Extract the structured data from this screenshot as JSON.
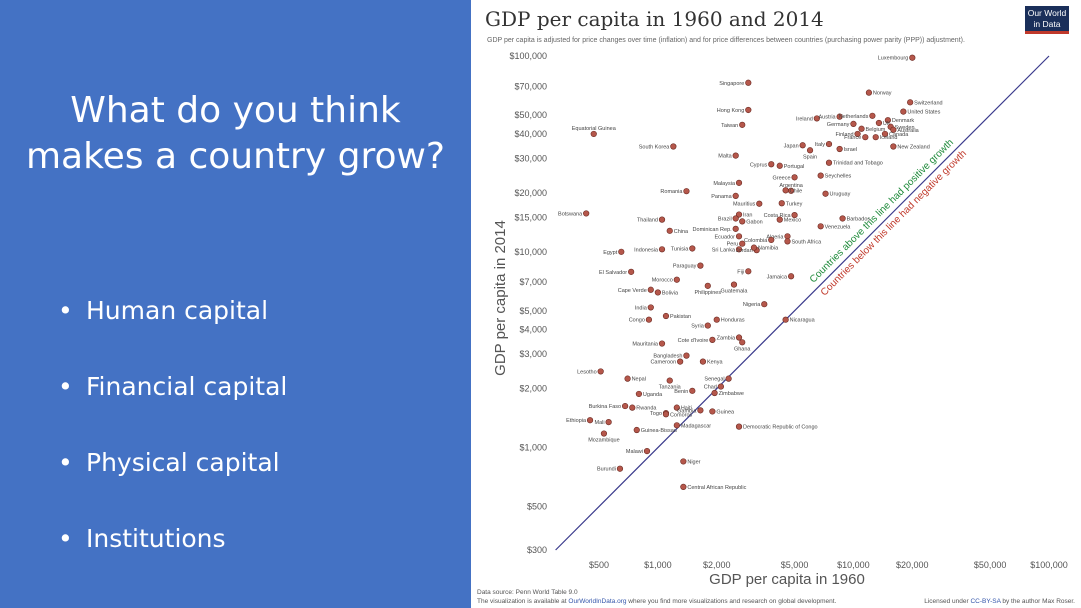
{
  "slide": {
    "title": "What do you think makes a country grow?",
    "bullets": [
      "Human capital",
      "Financial capital",
      "Physical capital",
      "Institutions"
    ]
  },
  "colors": {
    "panel": "#4472c4",
    "marker": "#b5574b",
    "diagonal": "#3a3a8c",
    "positive": "#1e8a3a",
    "negative": "#c0392b",
    "logo_bg": "#1a2f5a",
    "logo_accent": "#c0392b"
  },
  "logo": {
    "line1": "Our World",
    "line2": "in Data"
  },
  "chart_data": {
    "type": "scatter",
    "title": "GDP per capita in 1960 and 2014",
    "subtitle": "GDP per capita is adjusted for price changes over time (inflation) and for price differences between countries (purchasing power parity (PPP)) adjustment).",
    "xlabel": "GDP per capita in 1960",
    "ylabel": "GDP per capita in 2014",
    "xscale": "log",
    "yscale": "log",
    "xlim": [
      300,
      100000
    ],
    "ylim": [
      250,
      110000
    ],
    "x_ticks": [
      {
        "v": 500,
        "l": "$500"
      },
      {
        "v": 1000,
        "l": "$1,000"
      },
      {
        "v": 2000,
        "l": "$2,000"
      },
      {
        "v": 5000,
        "l": "$5,000"
      },
      {
        "v": 10000,
        "l": "$10,000"
      },
      {
        "v": 20000,
        "l": "$20,000"
      },
      {
        "v": 50000,
        "l": "$50,000"
      },
      {
        "v": 100000,
        "l": "$100,000"
      }
    ],
    "y_ticks": [
      {
        "v": 300,
        "l": "$300"
      },
      {
        "v": 500,
        "l": "$500"
      },
      {
        "v": 1000,
        "l": "$1,000"
      },
      {
        "v": 2000,
        "l": "$2,000"
      },
      {
        "v": 3000,
        "l": "$3,000"
      },
      {
        "v": 4000,
        "l": "$4,000"
      },
      {
        "v": 5000,
        "l": "$5,000"
      },
      {
        "v": 7000,
        "l": "$7,000"
      },
      {
        "v": 10000,
        "l": "$10,000"
      },
      {
        "v": 15000,
        "l": "$15,000"
      },
      {
        "v": 20000,
        "l": "$20,000"
      },
      {
        "v": 30000,
        "l": "$30,000"
      },
      {
        "v": 40000,
        "l": "$40,000"
      },
      {
        "v": 50000,
        "l": "$50,000"
      },
      {
        "v": 70000,
        "l": "$70,000"
      },
      {
        "v": 100000,
        "l": "$100,000"
      }
    ],
    "grid": false,
    "annotation_positive": "Countries above this line had positive growth",
    "annotation_negative": "Countries below this line had negative growth",
    "points": [
      {
        "name": "Luxembourg",
        "x": 20000,
        "y": 98000,
        "side": "left"
      },
      {
        "name": "Singapore",
        "x": 2900,
        "y": 73000,
        "side": "left"
      },
      {
        "name": "Norway",
        "x": 12000,
        "y": 65000,
        "side": "right"
      },
      {
        "name": "Switzerland",
        "x": 19500,
        "y": 58000,
        "side": "right"
      },
      {
        "name": "United States",
        "x": 18000,
        "y": 52000,
        "side": "right"
      },
      {
        "name": "Hong Kong",
        "x": 2900,
        "y": 53000,
        "side": "left"
      },
      {
        "name": "Ireland",
        "x": 6500,
        "y": 48000,
        "side": "left"
      },
      {
        "name": "Austria",
        "x": 8500,
        "y": 49000,
        "side": "left"
      },
      {
        "name": "Netherlands",
        "x": 12500,
        "y": 49500,
        "side": "left"
      },
      {
        "name": "Denmark",
        "x": 15000,
        "y": 47000,
        "side": "right"
      },
      {
        "name": "UK",
        "x": 13500,
        "y": 45500,
        "side": "right"
      },
      {
        "name": "Germany",
        "x": 10000,
        "y": 45000,
        "side": "left"
      },
      {
        "name": "Sweden",
        "x": 15500,
        "y": 43500,
        "side": "right"
      },
      {
        "name": "Belgium",
        "x": 11000,
        "y": 42500,
        "side": "right"
      },
      {
        "name": "Australia",
        "x": 16000,
        "y": 42000,
        "side": "right"
      },
      {
        "name": "Canada",
        "x": 14500,
        "y": 40000,
        "side": "right"
      },
      {
        "name": "Taiwan",
        "x": 2700,
        "y": 44500,
        "side": "left"
      },
      {
        "name": "Finland",
        "x": 10500,
        "y": 40000,
        "side": "left"
      },
      {
        "name": "France",
        "x": 11500,
        "y": 38500,
        "side": "left"
      },
      {
        "name": "Iceland",
        "x": 13000,
        "y": 38500,
        "side": "right"
      },
      {
        "name": "Equatorial Guinea",
        "x": 470,
        "y": 40000,
        "side": "above"
      },
      {
        "name": "South Korea",
        "x": 1200,
        "y": 34500,
        "side": "left"
      },
      {
        "name": "Japan",
        "x": 5500,
        "y": 35000,
        "side": "left"
      },
      {
        "name": "Italy",
        "x": 7500,
        "y": 35500,
        "side": "left"
      },
      {
        "name": "New Zealand",
        "x": 16000,
        "y": 34500,
        "side": "right"
      },
      {
        "name": "Israel",
        "x": 8500,
        "y": 33500,
        "side": "right"
      },
      {
        "name": "Spain",
        "x": 6000,
        "y": 33000,
        "side": "below"
      },
      {
        "name": "Malta",
        "x": 2500,
        "y": 31000,
        "side": "left"
      },
      {
        "name": "Cyprus",
        "x": 3800,
        "y": 28000,
        "side": "left"
      },
      {
        "name": "Portugal",
        "x": 4200,
        "y": 27500,
        "side": "right"
      },
      {
        "name": "Trinidad and Tobago",
        "x": 7500,
        "y": 28500,
        "side": "right"
      },
      {
        "name": "Greece",
        "x": 5000,
        "y": 24000,
        "side": "left"
      },
      {
        "name": "Seychelles",
        "x": 6800,
        "y": 24500,
        "side": "right"
      },
      {
        "name": "Malaysia",
        "x": 2600,
        "y": 22500,
        "side": "left"
      },
      {
        "name": "Argentina",
        "x": 4800,
        "y": 20500,
        "side": "above"
      },
      {
        "name": "Chile",
        "x": 4500,
        "y": 20600,
        "side": "right"
      },
      {
        "name": "Romania",
        "x": 1400,
        "y": 20400,
        "side": "left"
      },
      {
        "name": "Uruguay",
        "x": 7200,
        "y": 19800,
        "side": "right"
      },
      {
        "name": "Panama",
        "x": 2500,
        "y": 19300,
        "side": "left"
      },
      {
        "name": "Mauritius",
        "x": 3300,
        "y": 17600,
        "side": "left"
      },
      {
        "name": "Turkey",
        "x": 4300,
        "y": 17700,
        "side": "right"
      },
      {
        "name": "Botswana",
        "x": 430,
        "y": 15700,
        "side": "left"
      },
      {
        "name": "Iran",
        "x": 2600,
        "y": 15500,
        "side": "right"
      },
      {
        "name": "Brazil",
        "x": 2500,
        "y": 14800,
        "side": "left"
      },
      {
        "name": "Gabon",
        "x": 2700,
        "y": 14300,
        "side": "right"
      },
      {
        "name": "Costa Rica",
        "x": 5000,
        "y": 15400,
        "side": "left"
      },
      {
        "name": "Mexico",
        "x": 4200,
        "y": 14600,
        "side": "right"
      },
      {
        "name": "Barbados",
        "x": 8800,
        "y": 14800,
        "side": "right"
      },
      {
        "name": "Venezuela",
        "x": 6800,
        "y": 13500,
        "side": "right"
      },
      {
        "name": "Thailand",
        "x": 1050,
        "y": 14600,
        "side": "left"
      },
      {
        "name": "China",
        "x": 1150,
        "y": 12800,
        "side": "right"
      },
      {
        "name": "Dominican Rep.",
        "x": 2500,
        "y": 13100,
        "side": "left"
      },
      {
        "name": "Ecuador",
        "x": 2600,
        "y": 12000,
        "side": "left"
      },
      {
        "name": "Algeria",
        "x": 4600,
        "y": 12000,
        "side": "left"
      },
      {
        "name": "Colombia",
        "x": 3800,
        "y": 11500,
        "side": "left"
      },
      {
        "name": "Peru",
        "x": 2700,
        "y": 11000,
        "side": "left"
      },
      {
        "name": "South Africa",
        "x": 4600,
        "y": 11300,
        "side": "right"
      },
      {
        "name": "Sri Lanka",
        "x": 2600,
        "y": 10300,
        "side": "left"
      },
      {
        "name": "Jordan",
        "x": 3200,
        "y": 10200,
        "side": "left"
      },
      {
        "name": "Namibia",
        "x": 3100,
        "y": 10500,
        "side": "right"
      },
      {
        "name": "Indonesia",
        "x": 1050,
        "y": 10300,
        "side": "left"
      },
      {
        "name": "Tunisia",
        "x": 1500,
        "y": 10400,
        "side": "left"
      },
      {
        "name": "Egypt",
        "x": 650,
        "y": 10000,
        "side": "left"
      },
      {
        "name": "Paraguay",
        "x": 1650,
        "y": 8500,
        "side": "left"
      },
      {
        "name": "El Salvador",
        "x": 730,
        "y": 7900,
        "side": "left"
      },
      {
        "name": "Fiji",
        "x": 2900,
        "y": 7950,
        "side": "left"
      },
      {
        "name": "Jamaica",
        "x": 4800,
        "y": 7500,
        "side": "left"
      },
      {
        "name": "Morocco",
        "x": 1250,
        "y": 7200,
        "side": "left"
      },
      {
        "name": "Guatemala",
        "x": 2450,
        "y": 6800,
        "side": "below"
      },
      {
        "name": "Philippines",
        "x": 1800,
        "y": 6700,
        "side": "below"
      },
      {
        "name": "Cape Verde",
        "x": 920,
        "y": 6400,
        "side": "left"
      },
      {
        "name": "Bolivia",
        "x": 1000,
        "y": 6200,
        "side": "right"
      },
      {
        "name": "Nigeria",
        "x": 3500,
        "y": 5400,
        "side": "left"
      },
      {
        "name": "India",
        "x": 920,
        "y": 5200,
        "side": "left"
      },
      {
        "name": "Pakistan",
        "x": 1100,
        "y": 4700,
        "side": "right"
      },
      {
        "name": "Congo",
        "x": 900,
        "y": 4500,
        "side": "left"
      },
      {
        "name": "Honduras",
        "x": 2000,
        "y": 4500,
        "side": "right"
      },
      {
        "name": "Nicaragua",
        "x": 4500,
        "y": 4500,
        "side": "right"
      },
      {
        "name": "Syria",
        "x": 1800,
        "y": 4200,
        "side": "left"
      },
      {
        "name": "Zambia",
        "x": 2600,
        "y": 3650,
        "side": "left"
      },
      {
        "name": "Cote d'Ivoire",
        "x": 1900,
        "y": 3550,
        "side": "left"
      },
      {
        "name": "Ghana",
        "x": 2700,
        "y": 3450,
        "side": "below"
      },
      {
        "name": "Mauritania",
        "x": 1050,
        "y": 3400,
        "side": "left"
      },
      {
        "name": "Bangladesh",
        "x": 1400,
        "y": 2950,
        "side": "left"
      },
      {
        "name": "Cameroon",
        "x": 1300,
        "y": 2750,
        "side": "left"
      },
      {
        "name": "Kenya",
        "x": 1700,
        "y": 2750,
        "side": "right"
      },
      {
        "name": "Lesotho",
        "x": 510,
        "y": 2450,
        "side": "left"
      },
      {
        "name": "Nepal",
        "x": 700,
        "y": 2250,
        "side": "right"
      },
      {
        "name": "Senegal",
        "x": 2300,
        "y": 2250,
        "side": "left"
      },
      {
        "name": "Tanzania",
        "x": 1150,
        "y": 2200,
        "side": "below"
      },
      {
        "name": "Chad",
        "x": 2100,
        "y": 2050,
        "side": "left"
      },
      {
        "name": "Benin",
        "x": 1500,
        "y": 1950,
        "side": "left"
      },
      {
        "name": "Zimbabwe",
        "x": 1950,
        "y": 1900,
        "side": "right"
      },
      {
        "name": "Uganda",
        "x": 800,
        "y": 1880,
        "side": "right"
      },
      {
        "name": "Burkina Faso",
        "x": 680,
        "y": 1630,
        "side": "left"
      },
      {
        "name": "Rwanda",
        "x": 740,
        "y": 1600,
        "side": "right"
      },
      {
        "name": "Haiti",
        "x": 1250,
        "y": 1600,
        "side": "right"
      },
      {
        "name": "Togo",
        "x": 1100,
        "y": 1500,
        "side": "left"
      },
      {
        "name": "Comoros",
        "x": 1100,
        "y": 1480,
        "side": "right"
      },
      {
        "name": "Gambia",
        "x": 1650,
        "y": 1550,
        "side": "left"
      },
      {
        "name": "Guinea",
        "x": 1900,
        "y": 1530,
        "side": "right"
      },
      {
        "name": "Ethiopia",
        "x": 450,
        "y": 1380,
        "side": "left"
      },
      {
        "name": "Mali",
        "x": 560,
        "y": 1350,
        "side": "left"
      },
      {
        "name": "Madagascar",
        "x": 1250,
        "y": 1300,
        "side": "right"
      },
      {
        "name": "Democratic Republic of Congo",
        "x": 2600,
        "y": 1280,
        "side": "right"
      },
      {
        "name": "Guinea-Bissau",
        "x": 780,
        "y": 1230,
        "side": "right"
      },
      {
        "name": "Mozambique",
        "x": 530,
        "y": 1180,
        "side": "below"
      },
      {
        "name": "Malawi",
        "x": 880,
        "y": 960,
        "side": "left"
      },
      {
        "name": "Niger",
        "x": 1350,
        "y": 850,
        "side": "right"
      },
      {
        "name": "Burundi",
        "x": 640,
        "y": 780,
        "side": "left"
      },
      {
        "name": "Central African Republic",
        "x": 1350,
        "y": 630,
        "side": "right"
      }
    ]
  },
  "footer": {
    "source": "Data source: Penn World Table 9.0",
    "visual_pre": "The visualization is available at ",
    "visual_link": "OurWorldInData.org",
    "visual_post": " where you find more visualizations and research on global development.",
    "license_pre": "Licensed under ",
    "license_link": "CC-BY-SA",
    "license_post": " by the author Max Roser."
  }
}
